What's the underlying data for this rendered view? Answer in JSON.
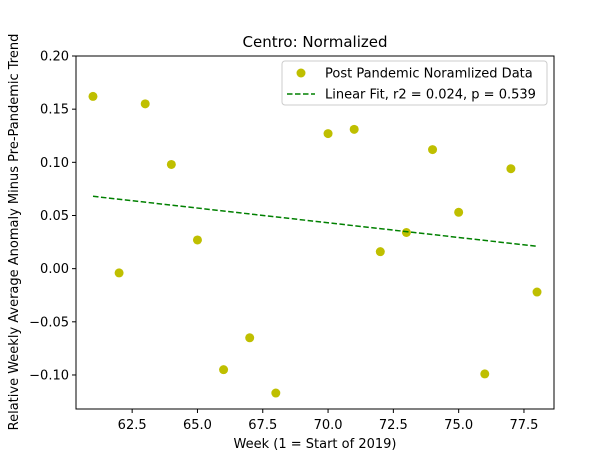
{
  "chart_data": {
    "type": "scatter",
    "title": "Centro: Normalized",
    "xlabel": "Week (1 = Start of 2019)",
    "ylabel": "Relative Weekly Average Anomaly Minus Pre-Pandemic Trend",
    "xlim": [
      60.35,
      78.65
    ],
    "ylim": [
      -0.132,
      0.2
    ],
    "xticks": [
      62.5,
      65.0,
      67.5,
      70.0,
      72.5,
      75.0,
      77.5
    ],
    "xtick_labels": [
      "62.5",
      "65.0",
      "67.5",
      "70.0",
      "72.5",
      "75.0",
      "77.5"
    ],
    "yticks": [
      -0.1,
      -0.05,
      0.0,
      0.05,
      0.1,
      0.15,
      0.2
    ],
    "ytick_labels": [
      "−0.10",
      "−0.05",
      "0.00",
      "0.05",
      "0.10",
      "0.15",
      "0.20"
    ],
    "grid": false,
    "legend_position": "top-right",
    "series": [
      {
        "name": "Post Pandemic Noramlized Data",
        "kind": "scatter",
        "color": "#bfbf00",
        "x": [
          61,
          62,
          63,
          64,
          65,
          66,
          67,
          68,
          70,
          71,
          72,
          73,
          74,
          75,
          76,
          77,
          78
        ],
        "y": [
          0.162,
          -0.004,
          0.155,
          0.098,
          0.027,
          -0.095,
          -0.065,
          -0.117,
          0.127,
          0.131,
          0.016,
          0.034,
          0.112,
          0.053,
          -0.099,
          0.094,
          -0.022
        ]
      },
      {
        "name": "Linear Fit, r2 = 0.024, p = 0.539",
        "kind": "line",
        "style": "dashed",
        "color": "#008000",
        "x": [
          61,
          78
        ],
        "y": [
          0.068,
          0.021
        ]
      }
    ]
  }
}
